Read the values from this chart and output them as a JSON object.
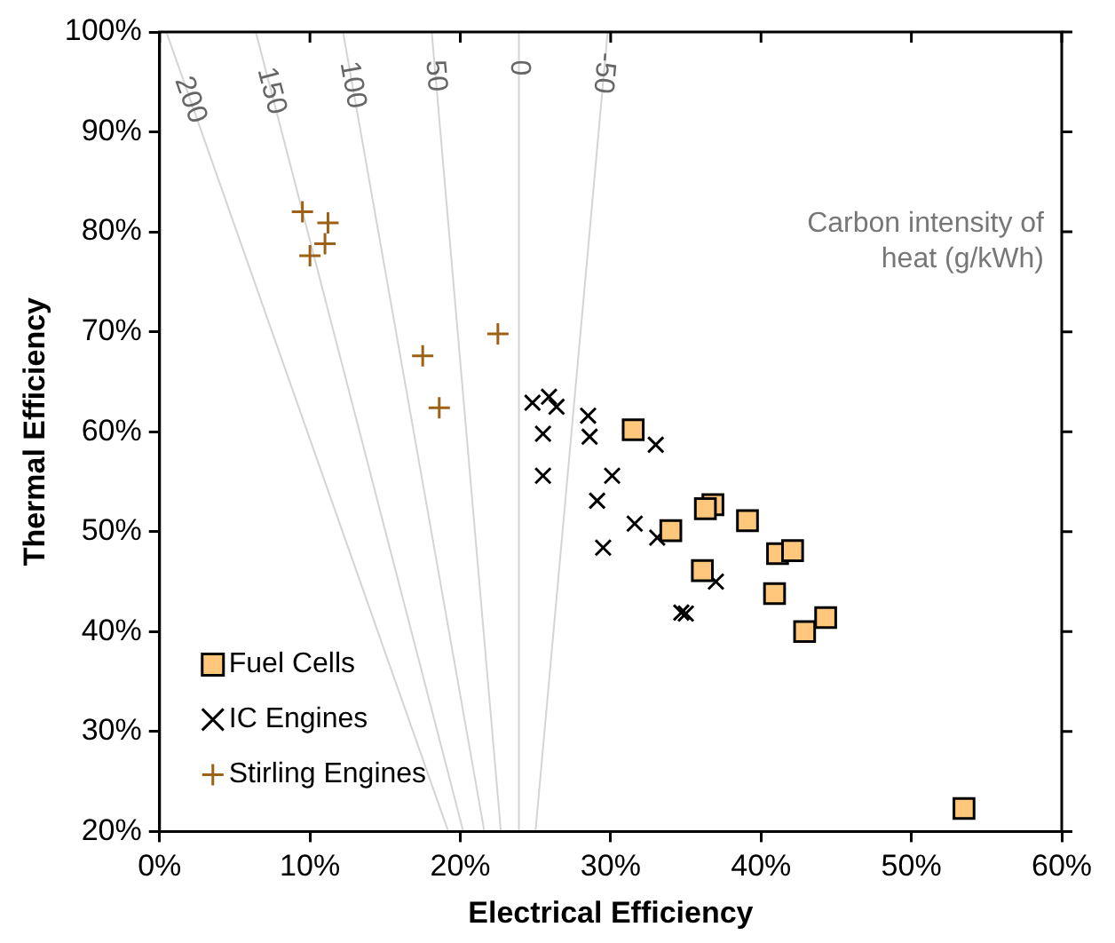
{
  "chart_data": {
    "type": "scatter",
    "xlabel": "Electrical Efficiency",
    "ylabel": "Thermal Efficiency",
    "xlim": [
      0,
      60
    ],
    "ylim": [
      20,
      100
    ],
    "xticks": [
      {
        "value": 0,
        "label": "0%"
      },
      {
        "value": 10,
        "label": "10%"
      },
      {
        "value": 20,
        "label": "20%"
      },
      {
        "value": 30,
        "label": "30%"
      },
      {
        "value": 40,
        "label": "40%"
      },
      {
        "value": 50,
        "label": "50%"
      },
      {
        "value": 60,
        "label": "60%"
      }
    ],
    "yticks": [
      {
        "value": 20,
        "label": "20%"
      },
      {
        "value": 30,
        "label": "30%"
      },
      {
        "value": 40,
        "label": "40%"
      },
      {
        "value": 50,
        "label": "50%"
      },
      {
        "value": 60,
        "label": "60%"
      },
      {
        "value": 70,
        "label": "70%"
      },
      {
        "value": 80,
        "label": "80%"
      },
      {
        "value": 90,
        "label": "90%"
      },
      {
        "value": 100,
        "label": "100%"
      }
    ],
    "grid": false,
    "legend": "bottom left",
    "series": [
      {
        "name": "Fuel Cells",
        "marker": "square",
        "color": "#fec77c",
        "x": [
          31.5,
          36.8,
          36.3,
          39.1,
          34.0,
          41.1,
          42.1,
          36.1,
          40.9,
          44.3,
          42.9,
          53.5
        ],
        "values": [
          60.2,
          52.7,
          52.3,
          51.1,
          50.1,
          47.8,
          48.1,
          46.1,
          43.8,
          41.4,
          40.0,
          22.3
        ]
      },
      {
        "name": "IC Engines",
        "marker": "cross",
        "color": "#000000",
        "x": [
          24.8,
          25.9,
          26.4,
          28.5,
          28.6,
          25.5,
          33.0,
          25.5,
          30.1,
          29.1,
          31.6,
          33.1,
          29.5,
          37.0,
          34.7,
          35.0
        ],
        "values": [
          62.9,
          63.5,
          62.5,
          61.6,
          59.5,
          59.8,
          58.7,
          55.6,
          55.6,
          53.1,
          50.8,
          49.4,
          48.4,
          45.0,
          41.9,
          41.8
        ]
      },
      {
        "name": "Stirling Engines",
        "marker": "plus",
        "color": "#9c6114",
        "x": [
          9.5,
          11.2,
          11.0,
          10.0,
          22.5,
          17.5,
          18.6
        ],
        "values": [
          82.0,
          80.9,
          78.8,
          77.6,
          69.8,
          67.6,
          62.4
        ]
      },
      {
        "type": "line",
        "marker": "none",
        "color": "#d4d4d4",
        "x": [
          0.45,
          19.2
        ],
        "values": [
          100,
          20
        ]
      },
      {
        "type": "line",
        "marker": "none",
        "color": "#d4d4d4",
        "x": [
          6.4,
          20.2
        ],
        "values": [
          100,
          20
        ]
      },
      {
        "type": "line",
        "marker": "none",
        "color": "#d4d4d4",
        "x": [
          12.2,
          21.6
        ],
        "values": [
          100,
          20
        ]
      },
      {
        "type": "line",
        "marker": "none",
        "color": "#d4d4d4",
        "x": [
          18.1,
          22.7
        ],
        "values": [
          100,
          20
        ]
      },
      {
        "type": "line",
        "marker": "none",
        "color": "#d4d4d4",
        "x": [
          23.9,
          23.9
        ],
        "values": [
          100,
          20
        ]
      },
      {
        "type": "line",
        "marker": "none",
        "color": "#d4d4d4",
        "x": [
          29.8,
          25.0
        ],
        "values": [
          100,
          20
        ]
      }
    ],
    "annotations": [
      {
        "text": "200",
        "x": 2.04,
        "y": 93.2
      },
      {
        "text": "150",
        "x": 7.42,
        "y": 94.1
      },
      {
        "text": "100",
        "x": 12.82,
        "y": 94.7
      },
      {
        "text": "50",
        "x": 18.35,
        "y": 95.6
      },
      {
        "text": "0",
        "x": 23.9,
        "y": 96.4
      },
      {
        "text": "-50",
        "x": 29.55,
        "y": 95.9
      },
      "Carbon intensity of heat (g/kWh)"
    ]
  }
}
